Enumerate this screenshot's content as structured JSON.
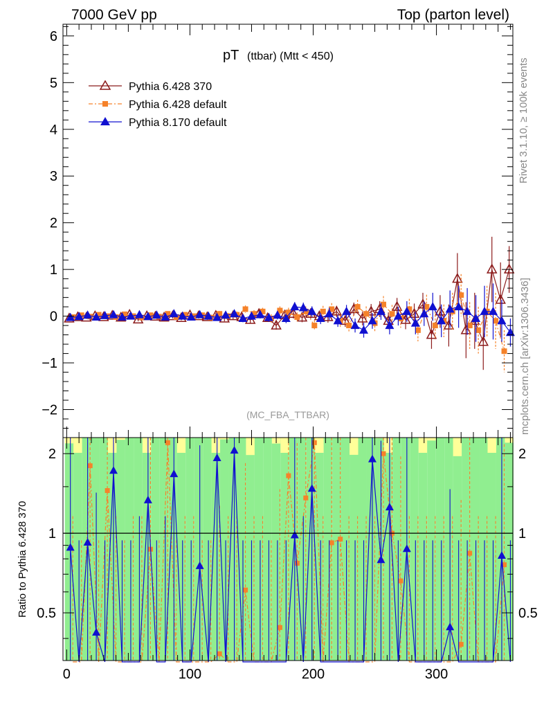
{
  "header": {
    "left": "7000 GeV pp",
    "right": "Top (parton level)"
  },
  "side_labels": {
    "rivet": "Rivet 3.1.10, ≥ 100k events",
    "mcplots": "mcplots.cern.ch [arXiv:1306.3436]"
  },
  "chart_data": {
    "type": "scatter",
    "title_main": "pT",
    "title_sub": "(ttbar) (Mtt < 450)",
    "watermark": "(MC_FBA_TTBAR)",
    "xlim": [
      -3,
      362
    ],
    "ylim": [
      -2.6,
      6.25
    ],
    "ratio_ylim": [
      0.33,
      2.3
    ],
    "ratio_ylabel": "Ratio to Pythia 6.428 370",
    "x_ticks": [
      0,
      100,
      200,
      300
    ],
    "y_ticks": [
      -2,
      -1,
      0,
      1,
      2,
      3,
      4,
      5,
      6
    ],
    "ratio_ticks": [
      0.5,
      1,
      2
    ],
    "legend_position": "top-left",
    "colors": {
      "py6_370": "#8b1a1a",
      "py6_default": "#f5822a",
      "py8": "#1010d0",
      "band_green": "#90ee90",
      "band_yellow": "#ffff99"
    },
    "series": [
      {
        "name": "Pythia 6.428 370",
        "marker": "triangle-open",
        "x": [
          2,
          9,
          16,
          23,
          30,
          37,
          44,
          51,
          58,
          65,
          72,
          79,
          86,
          93,
          100,
          107,
          114,
          121,
          128,
          135,
          142,
          149,
          156,
          163,
          170,
          177,
          184,
          191,
          198,
          205,
          212,
          219,
          226,
          233,
          240,
          247,
          254,
          261,
          268,
          275,
          282,
          289,
          296,
          303,
          310,
          317,
          324,
          331,
          338,
          345,
          352,
          359
        ],
        "y": [
          -0.05,
          -0.02,
          -0.03,
          0.0,
          -0.02,
          0.01,
          -0.03,
          0.03,
          -0.07,
          0.0,
          -0.01,
          -0.03,
          0.0,
          -0.04,
          0.02,
          0.0,
          -0.02,
          0.01,
          -0.05,
          0.0,
          -0.02,
          -0.08,
          0.05,
          -0.04,
          -0.2,
          0.02,
          0.05,
          -0.03,
          0.05,
          0.0,
          -0.02,
          0.1,
          -0.1,
          0.15,
          -0.05,
          0.1,
          0.15,
          -0.1,
          0.2,
          -0.08,
          0.05,
          0.25,
          -0.4,
          0.1,
          -0.2,
          0.8,
          -0.3,
          -0.1,
          -0.55,
          1.0,
          0.35,
          1.0
        ],
        "err": [
          0.03,
          0.03,
          0.03,
          0.03,
          0.03,
          0.03,
          0.04,
          0.04,
          0.04,
          0.04,
          0.04,
          0.04,
          0.05,
          0.05,
          0.05,
          0.05,
          0.06,
          0.06,
          0.06,
          0.07,
          0.07,
          0.08,
          0.08,
          0.08,
          0.09,
          0.09,
          0.1,
          0.1,
          0.1,
          0.11,
          0.12,
          0.12,
          0.13,
          0.14,
          0.15,
          0.16,
          0.17,
          0.18,
          0.19,
          0.2,
          0.22,
          0.25,
          0.3,
          0.35,
          0.45,
          0.55,
          0.6,
          0.6,
          0.6,
          0.7,
          0.8,
          0.5
        ]
      },
      {
        "name": "Pythia 6.428 default",
        "marker": "square",
        "x": [
          5,
          12,
          19,
          26,
          33,
          40,
          47,
          54,
          61,
          68,
          75,
          82,
          89,
          96,
          103,
          110,
          117,
          124,
          131,
          138,
          145,
          152,
          159,
          166,
          173,
          180,
          187,
          194,
          201,
          208,
          215,
          222,
          229,
          236,
          243,
          250,
          257,
          264,
          271,
          278,
          285,
          292,
          299,
          306,
          313,
          320,
          327,
          334,
          341,
          348,
          355
        ],
        "y": [
          -0.02,
          0.02,
          -0.01,
          0.03,
          0.0,
          -0.02,
          0.04,
          0.0,
          -0.03,
          0.02,
          -0.01,
          0.05,
          -0.02,
          0.03,
          0.0,
          0.02,
          -0.03,
          0.05,
          0.0,
          0.03,
          0.15,
          0.05,
          0.1,
          -0.05,
          0.12,
          0.08,
          -0.02,
          0.1,
          -0.2,
          0.1,
          0.15,
          -0.1,
          -0.2,
          0.2,
          0.05,
          -0.15,
          0.25,
          0.05,
          -0.05,
          0.15,
          -0.3,
          0.2,
          -0.2,
          -0.1,
          0.1,
          0.45,
          -0.2,
          -0.3,
          0.1,
          -0.1,
          -0.75
        ],
        "err": [
          0.03,
          0.03,
          0.03,
          0.03,
          0.03,
          0.03,
          0.04,
          0.04,
          0.04,
          0.04,
          0.04,
          0.05,
          0.05,
          0.05,
          0.05,
          0.06,
          0.06,
          0.06,
          0.07,
          0.07,
          0.08,
          0.08,
          0.08,
          0.09,
          0.09,
          0.1,
          0.1,
          0.11,
          0.11,
          0.12,
          0.13,
          0.13,
          0.14,
          0.15,
          0.16,
          0.17,
          0.18,
          0.19,
          0.2,
          0.22,
          0.24,
          0.26,
          0.3,
          0.35,
          0.4,
          0.45,
          0.5,
          0.5,
          0.55,
          0.6,
          0.45
        ]
      },
      {
        "name": "Pythia 8.170 default",
        "marker": "triangle-filled",
        "x": [
          3,
          10,
          17,
          24,
          31,
          38,
          45,
          52,
          59,
          66,
          73,
          80,
          87,
          94,
          101,
          108,
          115,
          122,
          129,
          136,
          143,
          150,
          157,
          164,
          171,
          178,
          185,
          192,
          199,
          206,
          213,
          220,
          227,
          234,
          241,
          248,
          255,
          262,
          269,
          276,
          283,
          290,
          297,
          304,
          311,
          318,
          325,
          332,
          339,
          346,
          353,
          360
        ],
        "y": [
          -0.03,
          -0.01,
          0.02,
          -0.02,
          0.01,
          0.03,
          -0.02,
          0.0,
          0.03,
          -0.01,
          0.02,
          -0.02,
          0.05,
          0.0,
          -0.02,
          0.03,
          0.0,
          -0.03,
          0.02,
          0.05,
          -0.05,
          0.0,
          0.03,
          -0.03,
          0.02,
          -0.05,
          0.2,
          0.18,
          0.1,
          -0.05,
          0.05,
          -0.1,
          0.1,
          -0.2,
          -0.3,
          -0.1,
          0.1,
          -0.2,
          0.0,
          0.1,
          -0.15,
          0.05,
          0.2,
          -0.1,
          0.15,
          0.2,
          0.1,
          -0.05,
          0.1,
          0.1,
          -0.1,
          -0.35
        ],
        "err": [
          0.03,
          0.03,
          0.03,
          0.03,
          0.03,
          0.03,
          0.04,
          0.04,
          0.04,
          0.04,
          0.04,
          0.05,
          0.05,
          0.05,
          0.05,
          0.06,
          0.06,
          0.06,
          0.07,
          0.07,
          0.08,
          0.08,
          0.08,
          0.09,
          0.09,
          0.1,
          0.1,
          0.11,
          0.11,
          0.12,
          0.13,
          0.13,
          0.14,
          0.15,
          0.16,
          0.17,
          0.18,
          0.19,
          0.2,
          0.22,
          0.24,
          0.26,
          0.3,
          0.35,
          0.4,
          0.45,
          0.5,
          0.5,
          0.55,
          0.6,
          0.45,
          0.3
        ]
      }
    ],
    "ratio_series": [
      {
        "name": "Pythia 6.428 default",
        "x": [
          5,
          12,
          19,
          26,
          33,
          40,
          47,
          54,
          61,
          68,
          75,
          82,
          89,
          96,
          103,
          110,
          117,
          124,
          131,
          138,
          145,
          152,
          159,
          166,
          173,
          180,
          187,
          194,
          201,
          208,
          215,
          222,
          229,
          236,
          243,
          250,
          257,
          264,
          271,
          278,
          285,
          292,
          299,
          306,
          313,
          320,
          327,
          334,
          341,
          348,
          355
        ],
        "y": [
          0.3,
          0.2,
          1.8,
          0.2,
          1.45,
          0.3,
          0.2,
          0.3,
          0.3,
          0.87,
          0.2,
          2.2,
          0.2,
          0.3,
          0.3,
          0.2,
          0.2,
          0.35,
          0.3,
          0.3,
          0.61,
          0.3,
          0.3,
          0.2,
          0.44,
          1.65,
          0.77,
          1.36,
          2.2,
          0.3,
          0.92,
          0.95,
          0.3,
          0.3,
          0.3,
          0.3,
          2.0,
          1.0,
          0.66,
          0.3,
          0.3,
          0.3,
          0.3,
          0.3,
          0.3,
          0.38,
          0.84,
          0.3,
          0.3,
          0.3,
          0.76
        ]
      },
      {
        "name": "Pythia 8.170 default",
        "x": [
          3,
          10,
          17,
          24,
          31,
          38,
          45,
          52,
          59,
          66,
          73,
          80,
          87,
          94,
          101,
          108,
          115,
          122,
          129,
          136,
          143,
          150,
          157,
          164,
          171,
          178,
          185,
          192,
          199,
          206,
          213,
          220,
          227,
          234,
          241,
          248,
          255,
          262,
          269,
          276,
          283,
          290,
          297,
          304,
          311,
          318,
          325,
          332,
          339,
          346,
          353,
          360
        ],
        "y": [
          0.88,
          0.2,
          0.92,
          0.42,
          0.2,
          1.72,
          0.2,
          0.2,
          0.3,
          1.33,
          0.2,
          0.3,
          1.67,
          0.2,
          0.2,
          0.75,
          0.2,
          1.92,
          0.2,
          2.05,
          0.2,
          0.2,
          0.2,
          0.2,
          0.2,
          0.2,
          0.98,
          0.3,
          1.47,
          0.2,
          0.2,
          0.2,
          0.2,
          0.2,
          0.2,
          1.9,
          0.79,
          1.25,
          0.2,
          0.87,
          0.2,
          0.2,
          0.2,
          0.2,
          0.44,
          0.2,
          0.2,
          0.2,
          0.2,
          0.2,
          0.82,
          0.2
        ]
      }
    ]
  }
}
